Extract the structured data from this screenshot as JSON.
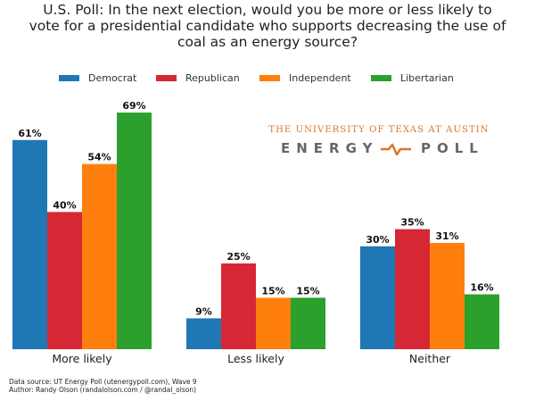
{
  "chart_data": {
    "type": "bar",
    "title_lines": [
      "U.S. Poll: In the next election, would you be more or less likely to",
      "vote for a presidential candidate who supports decreasing the use of",
      "coal as an energy source?"
    ],
    "categories": [
      "More likely",
      "Less likely",
      "Neither"
    ],
    "series": [
      {
        "name": "Democrat",
        "color": "#1f77b4",
        "values": [
          61,
          9,
          30
        ]
      },
      {
        "name": "Republican",
        "color": "#d62735",
        "values": [
          40,
          25,
          35
        ]
      },
      {
        "name": "Independent",
        "color": "#ff7f0e",
        "values": [
          54,
          15,
          31
        ]
      },
      {
        "name": "Libertarian",
        "color": "#2ca02c",
        "values": [
          69,
          15,
          16
        ]
      }
    ],
    "value_suffix": "%",
    "xlabel": "",
    "ylabel": "",
    "ylim": [
      0,
      70
    ],
    "grid": false,
    "legend_position": "top-center"
  },
  "logo": {
    "top_text": "THE UNIVERSITY OF TEXAS AT AUSTIN",
    "left_word": "ENERGY",
    "right_word": "POLL",
    "accent_color": "#d9752b"
  },
  "footer": {
    "line1": "Data source: UT Energy Poll (utenergypoll.com), Wave 9",
    "line2": "Author: Randy Olson (randalolson.com / @randal_olson)"
  }
}
